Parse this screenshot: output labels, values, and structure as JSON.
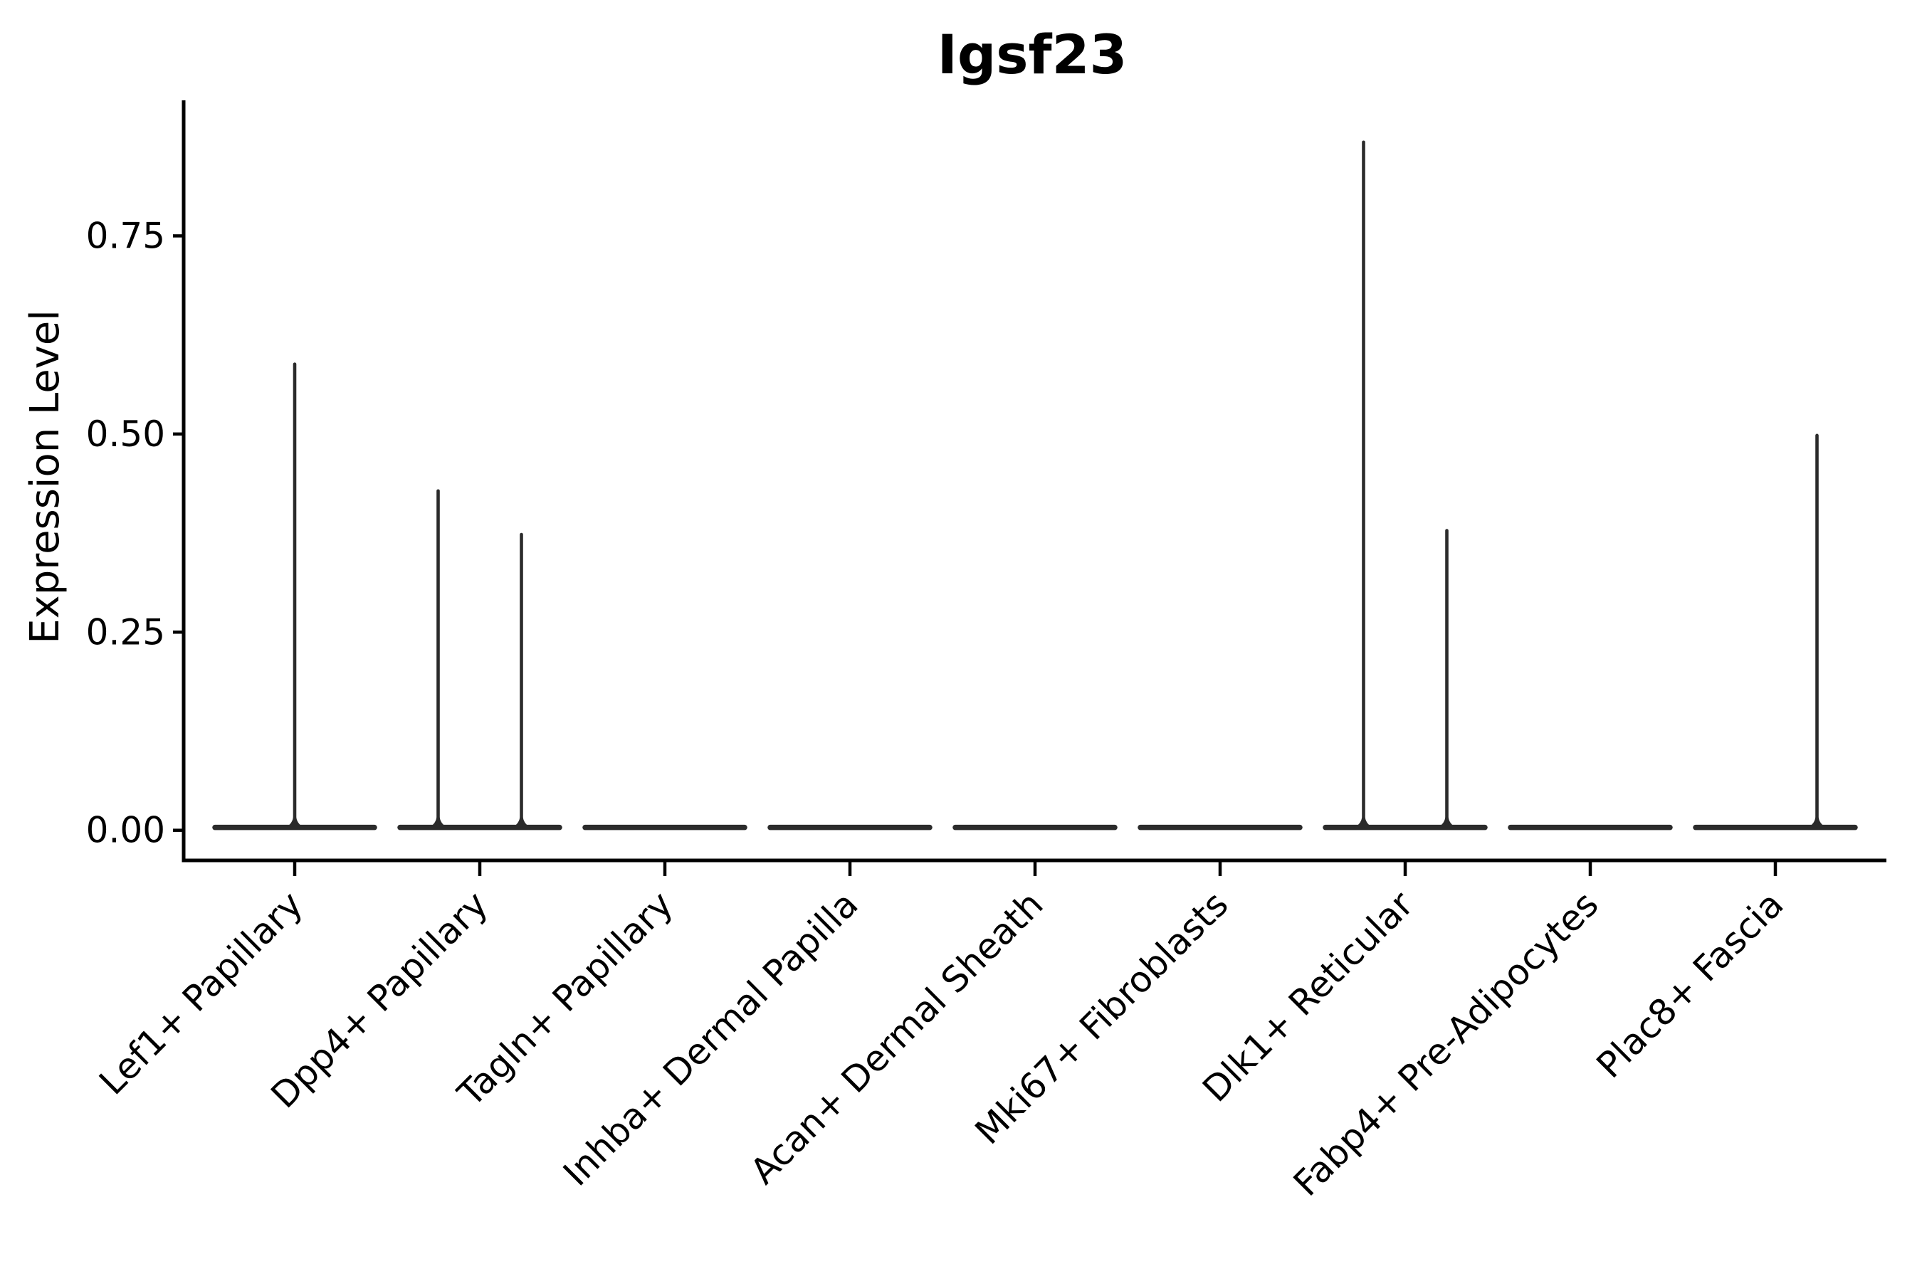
{
  "chart_data": {
    "type": "violin",
    "title": "Igsf23",
    "ylabel": "Expression Level",
    "xlabel": "",
    "background_color": "#ffffff",
    "axis_color": "#000000",
    "violin_color": "#2b2b2b",
    "grid": "off",
    "legend": "none",
    "categories": [
      "Lef1+ Papillary",
      "Dpp4+ Papillary",
      "Tagln+ Papillary",
      "Inhba+ Dermal Papilla",
      "Acan+ Dermal Sheath",
      "Mki67+ Fibroblasts",
      "Dlk1+ Reticular",
      "Fabp4+ Pre-Adipocytes",
      "Plac8+ Fascia"
    ],
    "x_tick_rotation_deg": 45,
    "y_ticks": [
      {
        "value": 0.0,
        "label": "0.00"
      },
      {
        "value": 0.25,
        "label": "0.25"
      },
      {
        "value": 0.5,
        "label": "0.50"
      },
      {
        "value": 0.75,
        "label": "0.75"
      }
    ],
    "ylim": [
      -0.038,
      0.921
    ],
    "violin_width_frac": 0.9,
    "series": [
      {
        "category": "Lef1+ Papillary",
        "baseline_value": 0,
        "spikes": [
          {
            "offset_frac": 0,
            "max_value": 0.59
          }
        ]
      },
      {
        "category": "Dpp4+ Papillary",
        "baseline_value": 0,
        "spikes": [
          {
            "offset_frac": -0.225,
            "max_value": 0.43
          },
          {
            "offset_frac": 0.225,
            "max_value": 0.375
          }
        ]
      },
      {
        "category": "Tagln+ Papillary",
        "baseline_value": 0,
        "spikes": []
      },
      {
        "category": "Inhba+ Dermal Papilla",
        "baseline_value": 0,
        "spikes": []
      },
      {
        "category": "Acan+ Dermal Sheath",
        "baseline_value": 0,
        "spikes": []
      },
      {
        "category": "Mki67+ Fibroblasts",
        "baseline_value": 0,
        "spikes": []
      },
      {
        "category": "Dlk1+ Reticular",
        "baseline_value": 0,
        "spikes": [
          {
            "offset_frac": -0.225,
            "max_value": 0.87
          },
          {
            "offset_frac": 0.225,
            "max_value": 0.38
          }
        ]
      },
      {
        "category": "Fabp4+ Pre-Adipocytes",
        "baseline_value": 0,
        "spikes": []
      },
      {
        "category": "Plac8+ Fascia",
        "baseline_value": 0,
        "spikes": [
          {
            "offset_frac": 0.225,
            "max_value": 0.5
          }
        ]
      }
    ]
  }
}
